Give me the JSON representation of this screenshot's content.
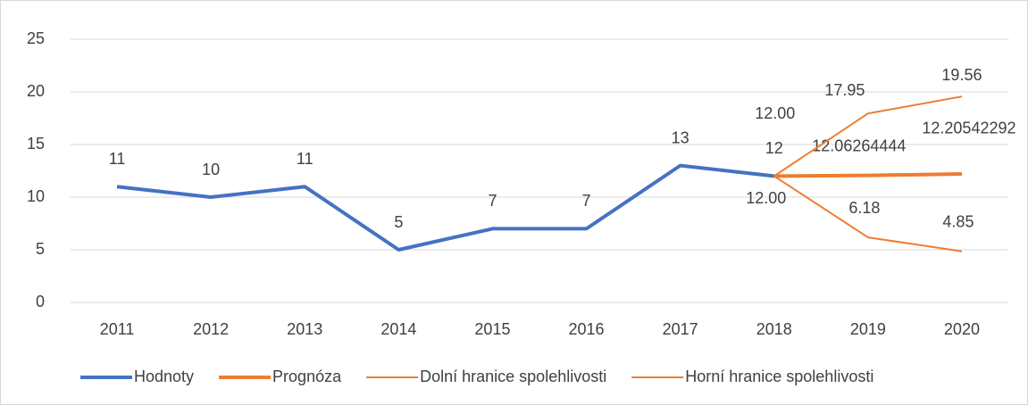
{
  "chart_data": {
    "type": "line",
    "categories": [
      "2011",
      "2012",
      "2013",
      "2014",
      "2015",
      "2016",
      "2017",
      "2018",
      "2019",
      "2020"
    ],
    "series": [
      {
        "name": "Hodnoty",
        "color": "#4472c4",
        "width": 4,
        "values": [
          11,
          10,
          11,
          5,
          7,
          7,
          13,
          12,
          null,
          null
        ],
        "value_labels": [
          "11",
          "10",
          "11",
          "5",
          "7",
          "7",
          "13",
          "12",
          null,
          null
        ]
      },
      {
        "name": "Prognóza",
        "color": "#ed7d31",
        "width": 4,
        "values": [
          null,
          null,
          null,
          null,
          null,
          null,
          null,
          12,
          12.06264444,
          12.20542292
        ],
        "value_labels": [
          null,
          null,
          null,
          null,
          null,
          null,
          null,
          null,
          "12.06264444",
          "12.20542292"
        ]
      },
      {
        "name": "Dolní hranice spolehlivosti",
        "color": "#ed7d31",
        "width": 2,
        "values": [
          null,
          null,
          null,
          null,
          null,
          null,
          null,
          12,
          6.18,
          4.85
        ],
        "value_labels": [
          null,
          null,
          null,
          null,
          null,
          null,
          null,
          "12.00",
          "6.18",
          "4.85"
        ]
      },
      {
        "name": "Horní hranice spolehlivosti",
        "color": "#ed7d31",
        "width": 2,
        "values": [
          null,
          null,
          null,
          null,
          null,
          null,
          null,
          12,
          17.95,
          19.56
        ],
        "value_labels": [
          null,
          null,
          null,
          null,
          null,
          null,
          null,
          "12.00",
          "17.95",
          "19.56"
        ]
      }
    ],
    "ylim": [
      0,
      25
    ],
    "yticks": [
      0,
      5,
      10,
      15,
      20,
      25
    ],
    "grid": true,
    "legend": "bottom"
  }
}
